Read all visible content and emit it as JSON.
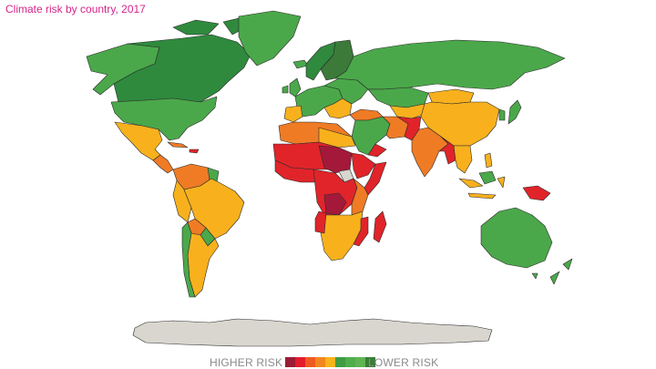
{
  "title": "Climate risk by country, 2017",
  "legend": {
    "high_label": "HIGHER RISK",
    "low_label": "LOWER RISK",
    "scale_colors": [
      "#9c1c34",
      "#e21d2c",
      "#ee5a1f",
      "#f3871f",
      "#f7b41b",
      "#3f9c42",
      "#4fae4a",
      "#5fb453",
      "#3a7d36"
    ]
  },
  "colors": {
    "title": "#d6248a",
    "very_high": "#a4193a",
    "high": "#e0242a",
    "medium_high": "#ef7b25",
    "medium": "#f8b11d",
    "low": "#4aa84a",
    "very_low": "#2f8a3d",
    "lowest": "#3c7a3a",
    "no_data": "#d9d6cf",
    "land_outline": "#2b2b2b"
  }
}
